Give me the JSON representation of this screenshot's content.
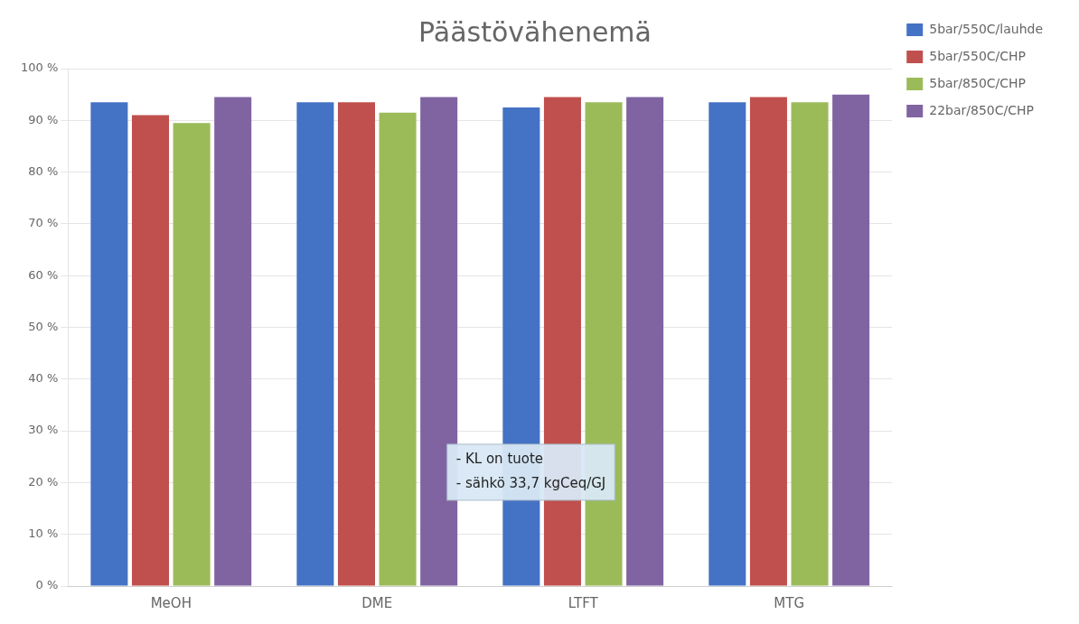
{
  "chart_data": {
    "type": "bar",
    "title": "Päästövähenemä",
    "categories": [
      "MeOH",
      "DME",
      "LTFT",
      "MTG"
    ],
    "series": [
      {
        "name": "5bar/550C/lauhde",
        "color": "#4472C4",
        "values": [
          93.5,
          93.5,
          92.5,
          93.5
        ]
      },
      {
        "name": "5bar/550C/CHP",
        "color": "#C0504D",
        "values": [
          91.0,
          93.5,
          94.5,
          94.5
        ]
      },
      {
        "name": "5bar/850C/CHP",
        "color": "#9BBB59",
        "values": [
          89.5,
          91.5,
          93.5,
          93.5
        ]
      },
      {
        "name": "22bar/850C/CHP",
        "color": "#8064A2",
        "values": [
          94.5,
          94.5,
          94.5,
          95.0
        ]
      }
    ],
    "ylim": [
      0,
      100
    ],
    "yticks": [
      {
        "value": 0,
        "label": "0 %"
      },
      {
        "value": 10,
        "label": "10 %"
      },
      {
        "value": 20,
        "label": "20 %"
      },
      {
        "value": 30,
        "label": "30 %"
      },
      {
        "value": 40,
        "label": "40 %"
      },
      {
        "value": 50,
        "label": "50 %"
      },
      {
        "value": 60,
        "label": "60 %"
      },
      {
        "value": 70,
        "label": "70 %"
      },
      {
        "value": 80,
        "label": "80 %"
      },
      {
        "value": 90,
        "label": "90 %"
      },
      {
        "value": 100,
        "label": "100 %"
      }
    ],
    "annotation": "- KL on tuote\n- sähkö 33,7 kgCeq/GJ",
    "grid": "y",
    "legend": "right"
  }
}
